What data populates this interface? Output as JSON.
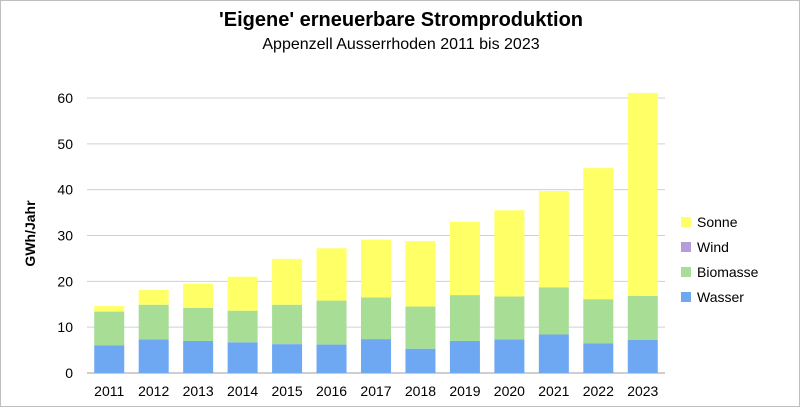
{
  "chart_data": {
    "type": "bar",
    "stacked": true,
    "title": "'Eigene' erneuerbare Stromproduktion",
    "subtitle": "Appenzell Ausserrhoden 2011 bis 2023",
    "xlabel": "",
    "ylabel": "GWh/Jahr",
    "ylim": [
      0,
      60
    ],
    "yticks": [
      0,
      10,
      20,
      30,
      40,
      50,
      60
    ],
    "grid": true,
    "legend_position": "right",
    "categories": [
      "2011",
      "2012",
      "2013",
      "2014",
      "2015",
      "2016",
      "2017",
      "2018",
      "2019",
      "2020",
      "2021",
      "2022",
      "2023"
    ],
    "series": [
      {
        "name": "Wasser",
        "color": "#6fa8f2",
        "values": [
          6.0,
          7.3,
          7.0,
          6.7,
          6.3,
          6.2,
          7.4,
          5.3,
          7.0,
          7.3,
          8.4,
          6.5,
          7.2
        ]
      },
      {
        "name": "Biomasse",
        "color": "#a8dd96",
        "values": [
          7.4,
          7.6,
          7.2,
          6.9,
          8.6,
          9.6,
          9.1,
          9.2,
          10.0,
          9.4,
          10.3,
          9.6,
          9.6
        ]
      },
      {
        "name": "Wind",
        "color": "#b39ddb",
        "values": [
          0,
          0,
          0,
          0,
          0,
          0,
          0,
          0,
          0,
          0,
          0,
          0,
          0
        ]
      },
      {
        "name": "Sonne",
        "color": "#ffff66",
        "values": [
          1.2,
          3.2,
          5.3,
          7.4,
          10.0,
          11.4,
          12.6,
          14.3,
          16.0,
          18.8,
          21.0,
          28.6,
          44.3
        ]
      }
    ]
  }
}
